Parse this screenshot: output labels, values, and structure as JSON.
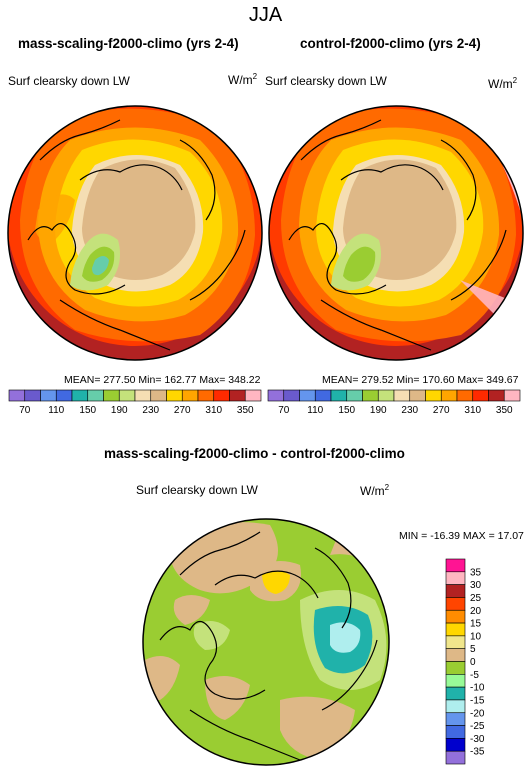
{
  "season": "JJA",
  "panels": [
    {
      "title": "mass-scaling-f2000-climo (yrs 2-4)",
      "variable": "Surf clearsky down LW",
      "units": "W/m",
      "units_sup": "2",
      "stats": "MEAN= 277.50  Min= 162.77  Max= 348.22"
    },
    {
      "title": "control-f2000-climo (yrs 2-4)",
      "variable": "Surf clearsky down LW",
      "units": "W/m",
      "units_sup": "2",
      "stats": "MEAN= 279.52  Min= 170.60  Max= 349.67"
    },
    {
      "title": "mass-scaling-f2000-climo - control-f2000-climo",
      "variable": "Surf clearsky down LW",
      "units": "W/m",
      "units_sup": "2",
      "stats": "MIN = -16.39 MAX =  17.07"
    }
  ],
  "chart_data": [
    {
      "type": "heatmap",
      "title": "mass-scaling-f2000-climo (yrs 2-4)",
      "variable": "Surf clearsky down LW",
      "units": "W/m2",
      "projection": "north polar stereographic",
      "stats": {
        "mean": 277.5,
        "min": 162.77,
        "max": 348.22
      },
      "contour_levels": [
        70,
        90,
        110,
        130,
        150,
        170,
        190,
        210,
        230,
        250,
        270,
        290,
        310,
        330,
        350
      ],
      "colorbar_labels": [
        "70",
        "110",
        "150",
        "190",
        "230",
        "270",
        "310",
        "350"
      ],
      "colors": [
        "#9370db",
        "#6a5acd",
        "#6495ed",
        "#4169e1",
        "#20b2aa",
        "#66cdaa",
        "#9acd32",
        "#c4e27b",
        "#f5deb3",
        "#deb887",
        "#ffd700",
        "#ffa500",
        "#ff6a00",
        "#ff2a00",
        "#b22222",
        "#ffb6c1"
      ]
    },
    {
      "type": "heatmap",
      "title": "control-f2000-climo (yrs 2-4)",
      "variable": "Surf clearsky down LW",
      "units": "W/m2",
      "projection": "north polar stereographic",
      "stats": {
        "mean": 279.52,
        "min": 170.6,
        "max": 349.67
      },
      "contour_levels": [
        70,
        90,
        110,
        130,
        150,
        170,
        190,
        210,
        230,
        250,
        270,
        290,
        310,
        330,
        350
      ],
      "colorbar_labels": [
        "70",
        "110",
        "150",
        "190",
        "230",
        "270",
        "310",
        "350"
      ],
      "colors": [
        "#9370db",
        "#6a5acd",
        "#6495ed",
        "#4169e1",
        "#20b2aa",
        "#66cdaa",
        "#9acd32",
        "#c4e27b",
        "#f5deb3",
        "#deb887",
        "#ffd700",
        "#ffa500",
        "#ff6a00",
        "#ff2a00",
        "#b22222",
        "#ffb6c1"
      ]
    },
    {
      "type": "heatmap",
      "title": "mass-scaling-f2000-climo - control-f2000-climo",
      "variable": "Surf clearsky down LW",
      "units": "W/m2",
      "projection": "north polar stereographic",
      "stats": {
        "min": -16.39,
        "max": 17.07
      },
      "contour_levels": [
        35,
        30,
        25,
        20,
        15,
        10,
        5,
        0,
        -5,
        -10,
        -15,
        -20,
        -25,
        -30,
        -35
      ],
      "colorbar_labels": [
        "35",
        "30",
        "25",
        "20",
        "15",
        "10",
        "5",
        "0",
        "-5",
        "-10",
        "-15",
        "-20",
        "-25",
        "-30",
        "-35"
      ],
      "colors": [
        "#ff1493",
        "#ffb6c1",
        "#b22222",
        "#ff4500",
        "#ff8c00",
        "#ffd700",
        "#f0e68c",
        "#deb887",
        "#9acd32",
        "#98fb98",
        "#20b2aa",
        "#afeeee",
        "#6495ed",
        "#4169e1",
        "#0000cd",
        "#9370db"
      ]
    }
  ]
}
